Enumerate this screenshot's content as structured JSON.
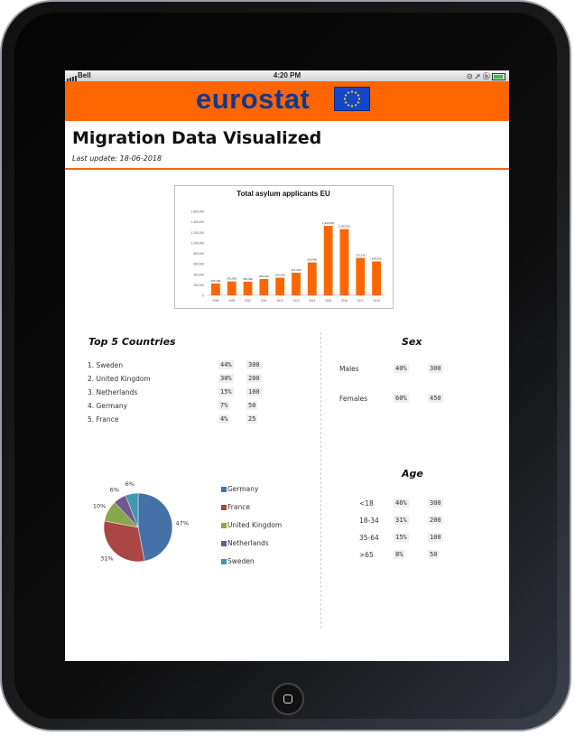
{
  "status_bar": {
    "carrier": "Bell",
    "time": "4:20 PM",
    "icons": "⊙ ➚ ⓑ"
  },
  "banner": {
    "brand": "eurostat"
  },
  "page": {
    "title": "Migration Data Visualized",
    "last_update": "Last update: 18-06-2018"
  },
  "chart_data": [
    {
      "type": "bar",
      "title": "Total asylum applicants EU",
      "categories": [
        "2008",
        "2009",
        "2010",
        "2011",
        "2012",
        "2013",
        "2014",
        "2015",
        "2016",
        "2017",
        "2018"
      ],
      "values": [
        225150,
        263835,
        259400,
        309040,
        335290,
        431090,
        626960,
        1322825,
        1260910,
        712235,
        646060
      ],
      "ylim": [
        0,
        1600000
      ],
      "yticks": [
        "0",
        "200,000",
        "400,000",
        "600,000",
        "800,000",
        "1,000,000",
        "1,200,000",
        "1,400,000",
        "1,600,000"
      ],
      "value_labels": [
        "225,150",
        "263,835",
        "259,400",
        "309,040",
        "335,290",
        "431,090",
        "626,960",
        "1,322,825",
        "1,260,910",
        "712,235",
        "646,060"
      ],
      "color": "#ff6600"
    },
    {
      "type": "pie",
      "labels": [
        "Germany",
        "France",
        "United Kingdom",
        "Netherlands",
        "Sweden"
      ],
      "values": [
        47,
        31,
        10,
        6,
        6
      ],
      "slice_labels": [
        "47%",
        "31%",
        "10%",
        "6%",
        "6%"
      ],
      "colors": [
        "#4472a8",
        "#aa4643",
        "#89a54e",
        "#71588f",
        "#4198af"
      ]
    }
  ],
  "top_countries": {
    "title": "Top 5 Countries",
    "rows": [
      {
        "name": "1. Sweden",
        "pct": "44%",
        "count": "300"
      },
      {
        "name": "2. United Kingdom",
        "pct": "30%",
        "count": "200"
      },
      {
        "name": "3. Netherlands",
        "pct": "15%",
        "count": "100"
      },
      {
        "name": "4. Germany",
        "pct": "7%",
        "count": "50"
      },
      {
        "name": "5. France",
        "pct": "4%",
        "count": "25"
      }
    ]
  },
  "sex": {
    "title": "Sex",
    "rows": [
      {
        "name": "Males",
        "pct": "40%",
        "count": "300"
      },
      {
        "name": "Females",
        "pct": "60%",
        "count": "450"
      }
    ]
  },
  "age": {
    "title": "Age",
    "rows": [
      {
        "name": "<18",
        "pct": "46%",
        "count": "300"
      },
      {
        "name": "18-34",
        "pct": "31%",
        "count": "200"
      },
      {
        "name": "35-64",
        "pct": "15%",
        "count": "100"
      },
      {
        "name": ">65",
        "pct": "8%",
        "count": "50"
      }
    ]
  },
  "colors": {
    "accent": "#ff6600",
    "brand": "#10388c"
  }
}
